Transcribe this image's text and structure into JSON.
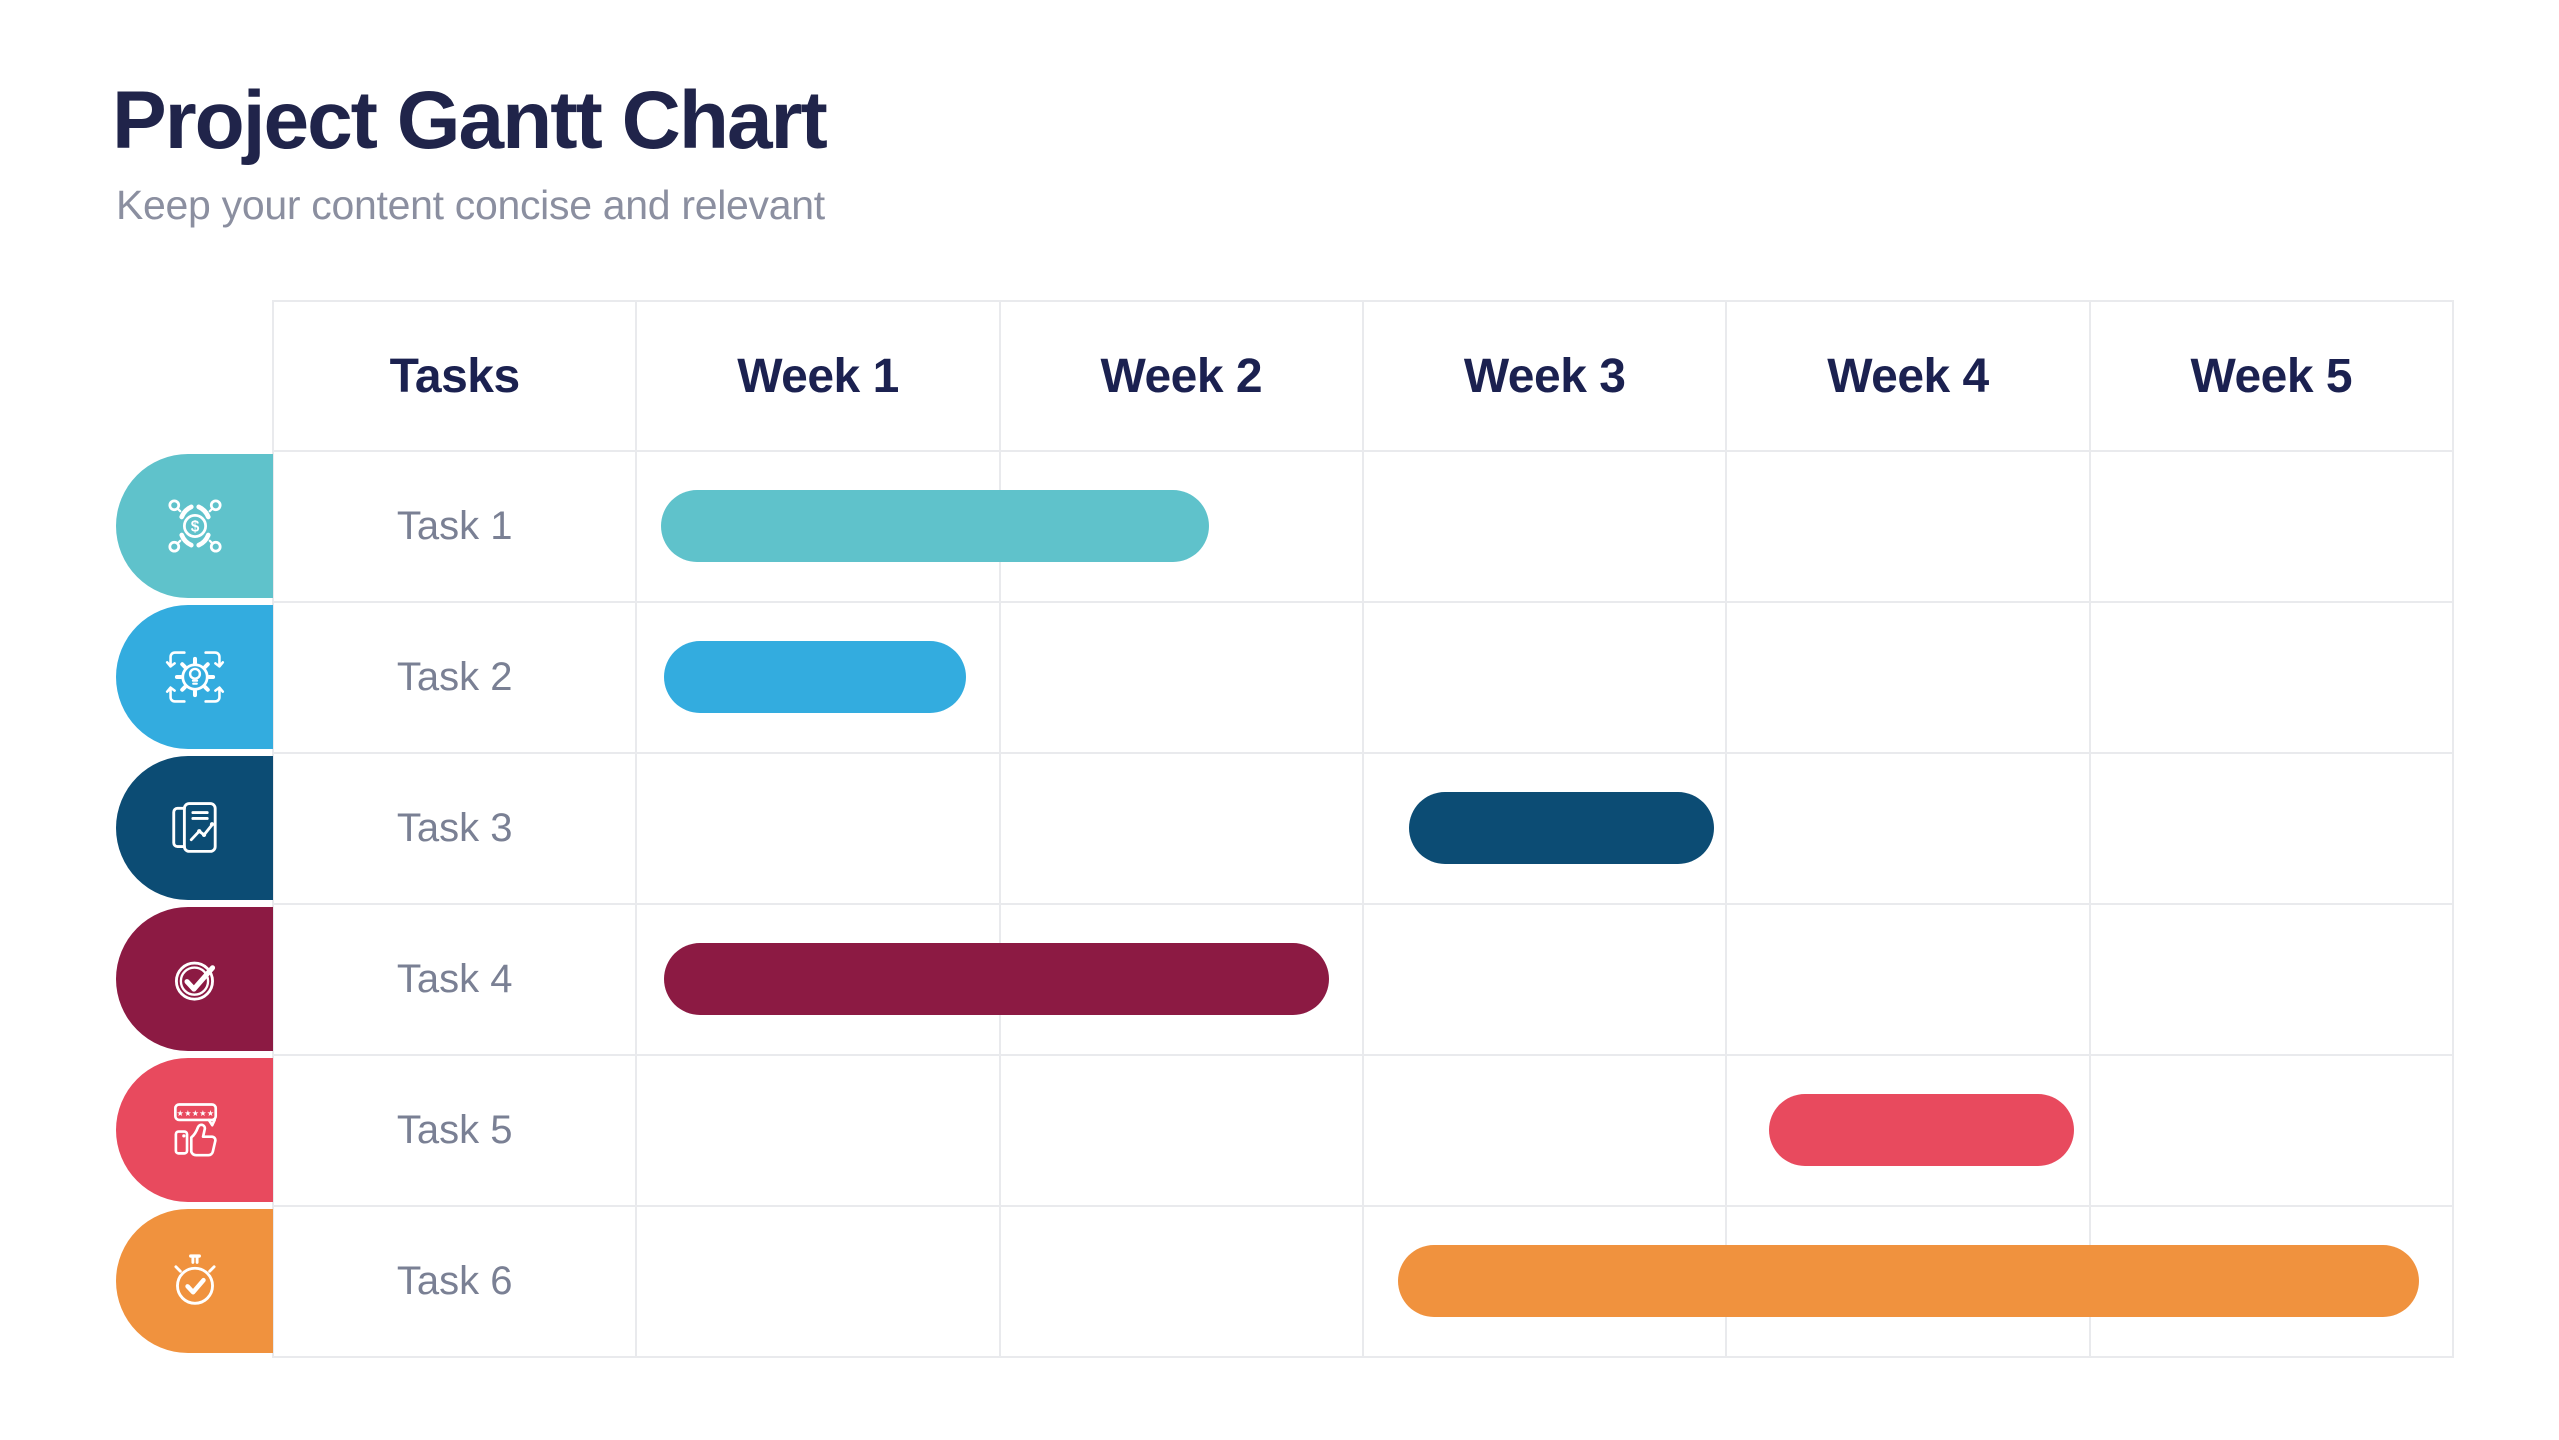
{
  "page": {
    "title": "Project Gantt Chart",
    "subtitle": "Keep your content concise and relevant"
  },
  "chart_data": {
    "type": "bar",
    "subtype": "gantt",
    "title": "Project Gantt Chart",
    "subtitle": "Keep your content concise and relevant",
    "columns": [
      "Tasks",
      "Week 1",
      "Week 2",
      "Week 3",
      "Week 4",
      "Week 5"
    ],
    "week_axis": {
      "unit": "week",
      "range": [
        0,
        5
      ],
      "tick_labels": [
        "Week 1",
        "Week 2",
        "Week 3",
        "Week 4",
        "Week 5"
      ]
    },
    "grid": true,
    "legend": false,
    "tasks": [
      {
        "label": "Task 1",
        "icon": "budget-network-icon",
        "color": "#5FC2CB",
        "start_week": 0.07,
        "end_week": 1.58
      },
      {
        "label": "Task 2",
        "icon": "idea-gear-icon",
        "color": "#33ACDF",
        "start_week": 0.08,
        "end_week": 0.91
      },
      {
        "label": "Task 3",
        "icon": "report-chart-icon",
        "color": "#0C4C74",
        "start_week": 2.13,
        "end_week": 2.97
      },
      {
        "label": "Task 4",
        "icon": "check-circle-icon",
        "color": "#8C1A43",
        "start_week": 0.08,
        "end_week": 1.91
      },
      {
        "label": "Task 5",
        "icon": "rating-thumbs-up-icon",
        "color": "#E84A5E",
        "start_week": 3.12,
        "end_week": 3.96
      },
      {
        "label": "Task 6",
        "icon": "stopwatch-check-icon",
        "color": "#F0923E",
        "start_week": 2.1,
        "end_week": 4.91
      }
    ],
    "colors": {
      "title_text": "#20244A",
      "subtitle_text": "#8B8FA0",
      "header_text": "#1B2150",
      "task_label_text": "#7A8094",
      "grid_line": "#E9EAED",
      "background": "#FFFFFF"
    }
  }
}
